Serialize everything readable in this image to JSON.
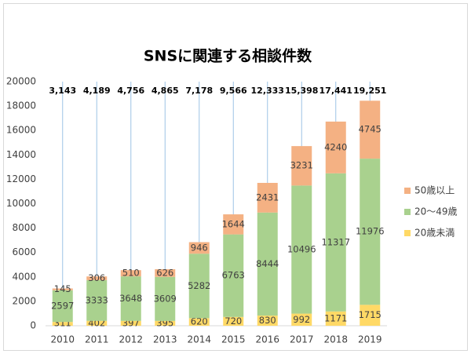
{
  "chart_data": {
    "type": "bar",
    "stacked": true,
    "title": "SNSに関連する相談件数",
    "categories": [
      "2010",
      "2011",
      "2012",
      "2013",
      "2014",
      "2015",
      "2016",
      "2017",
      "2018",
      "2019"
    ],
    "series": [
      {
        "name": "20歳未満",
        "color": "#ffd966",
        "values": [
          311,
          402,
          397,
          395,
          620,
          720,
          830,
          992,
          1171,
          1715
        ]
      },
      {
        "name": "20〜49歳",
        "color": "#a9d18e",
        "values": [
          2597,
          3333,
          3648,
          3609,
          5282,
          6763,
          8444,
          10496,
          11317,
          11976
        ]
      },
      {
        "name": "50歳以上",
        "color": "#f4b183",
        "values": [
          145,
          306,
          510,
          626,
          946,
          1644,
          2431,
          3231,
          4240,
          4745
        ]
      }
    ],
    "totals": {
      "values": [
        3143,
        4189,
        4756,
        4865,
        7178,
        9566,
        12333,
        15398,
        17441,
        19251
      ],
      "value_labels": [
        "3,143",
        "4,189",
        "4,756",
        "4,865",
        "7,178",
        "9,566",
        "12,333",
        "15,398",
        "17,441",
        "19,251"
      ]
    },
    "ylim": [
      0,
      20000
    ],
    "yticks": [
      0,
      2000,
      4000,
      6000,
      8000,
      10000,
      12000,
      14000,
      16000,
      18000,
      20000
    ],
    "grid": "vertical",
    "legend": "right"
  }
}
